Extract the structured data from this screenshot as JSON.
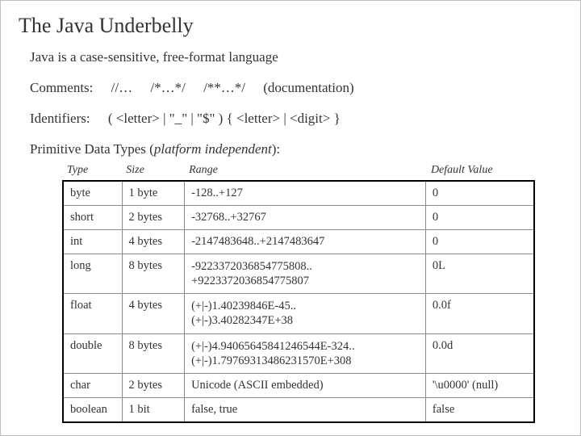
{
  "title": "The Java Underbelly",
  "intro": "Java is a case-sensitive, free-format language",
  "comments": {
    "label": "Comments:",
    "c1": "//…",
    "c2": "/*…*/",
    "c3": "/**…*/",
    "c3note": "(documentation)"
  },
  "identifiers": {
    "label": "Identifiers:",
    "rule": "( <letter> | \"_\" | \"$\" ) { <letter> | <digit> }"
  },
  "types_heading": {
    "pre": "Primitive Data Types (",
    "ital": "platform independent",
    "post": "):"
  },
  "columns": {
    "type": "Type",
    "size": "Size",
    "range": "Range",
    "default": "Default Value"
  },
  "rows": [
    {
      "type": "byte",
      "size": "1 byte",
      "range": "-128..+127",
      "range_class": "",
      "default": "0"
    },
    {
      "type": "short",
      "size": "2 bytes",
      "range": "-32768..+32767",
      "range_class": "",
      "default": "0"
    },
    {
      "type": "int",
      "size": "4 bytes",
      "range": "-2147483648..+2147483647",
      "range_class": "",
      "default": "0"
    },
    {
      "type": "long",
      "size": "8 bytes",
      "range": "-9223372036854775808..\n+9223372036854775807",
      "range_class": "small",
      "default": "0L"
    },
    {
      "type": "float",
      "size": "4 bytes",
      "range": "(+|-)1.40239846E-45..\n(+|-)3.40282347E+38",
      "range_class": "xsmall",
      "default": "0.0f"
    },
    {
      "type": "double",
      "size": "8 bytes",
      "range": "(+|-)4.94065645841246544E-324..\n(+|-)1.79769313486231570E+308",
      "range_class": "xsmall",
      "default": "0.0d"
    },
    {
      "type": "char",
      "size": "2 bytes",
      "range": "Unicode (ASCII embedded)",
      "range_class": "",
      "default": "'\\u0000' (null)"
    },
    {
      "type": "boolean",
      "size": "1 bit",
      "range": "false, true",
      "range_class": "",
      "default": "false"
    }
  ]
}
